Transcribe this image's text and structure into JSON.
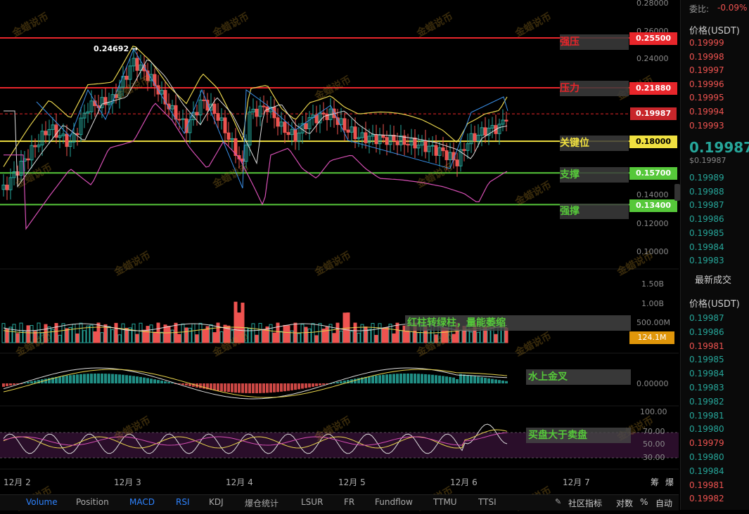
{
  "price_axis": {
    "ticks": [
      "0.28000",
      "0.26000",
      "0.24000",
      "0.20000",
      "0.14000",
      "0.12000",
      "0.10000"
    ],
    "volume_ticks": [
      "1.50B",
      "1.00B",
      "500.00M"
    ],
    "volume_current": "124.1M",
    "macd_tick": "0.00000",
    "rsi_ticks": [
      "100.00",
      "70.00",
      "50.00",
      "30.00"
    ]
  },
  "levels": {
    "strong_resistance": {
      "label": "强压",
      "price": "0.25500",
      "color": "#e8262b"
    },
    "resistance": {
      "label": "压力",
      "price": "0.21880",
      "color": "#e8262b"
    },
    "current": {
      "price": "0.19987",
      "color": "#e8262b"
    },
    "key": {
      "label": "关键位",
      "price": "0.18000",
      "color": "#f0e040"
    },
    "support": {
      "label": "支撑",
      "price": "0.15700",
      "color": "#56c83a"
    },
    "strong_support": {
      "label": "强撑",
      "price": "0.13400",
      "color": "#56c83a"
    }
  },
  "peak_label": "0.24692 →",
  "annotations": {
    "volume_note": "红柱转绿柱，量能萎缩",
    "macd_note": "水上金叉",
    "rsi_note": "买盘大于卖盘"
  },
  "dates": [
    "12月 2",
    "12月 3",
    "12月 4",
    "12月 5",
    "12月 6",
    "12月 7"
  ],
  "axis_corner": [
    "筹",
    "爆"
  ],
  "tabs": [
    "Volume",
    "Position",
    "MACD",
    "RSI",
    "KDJ",
    "爆仓统计",
    "LSUR",
    "FR",
    "Fundflow",
    "TTMU",
    "TTSI"
  ],
  "tabs_right": [
    "社区指标",
    "对数",
    "%",
    "自动"
  ],
  "watermark": "金蜡说币",
  "orderbook": {
    "ratio_label": "委比:",
    "ratio_value": "-0.09%",
    "price_header": "价格(USDT)",
    "asks": [
      "0.19999",
      "0.19998",
      "0.19997",
      "0.19996",
      "0.19995",
      "0.19994",
      "0.19993"
    ],
    "last_price": "0.19987",
    "last_price_usd": "$0.19987",
    "bids": [
      "0.19989",
      "0.19988",
      "0.19987",
      "0.19986",
      "0.19985",
      "0.19984",
      "0.19983"
    ],
    "trades_header": "最新成交",
    "trades_price_header": "价格(USDT)",
    "trades": [
      {
        "p": "0.19987",
        "c": "green"
      },
      {
        "p": "0.19986",
        "c": "green"
      },
      {
        "p": "0.19981",
        "c": "red"
      },
      {
        "p": "0.19985",
        "c": "green"
      },
      {
        "p": "0.19984",
        "c": "green"
      },
      {
        "p": "0.19983",
        "c": "green"
      },
      {
        "p": "0.19982",
        "c": "green"
      },
      {
        "p": "0.19981",
        "c": "green"
      },
      {
        "p": "0.19980",
        "c": "green"
      },
      {
        "p": "0.19979",
        "c": "red"
      },
      {
        "p": "0.19980",
        "c": "green"
      },
      {
        "p": "0.19984",
        "c": "green"
      },
      {
        "p": "0.19981",
        "c": "red"
      },
      {
        "p": "0.19982",
        "c": "red"
      }
    ]
  },
  "colors": {
    "up": "#26a69a",
    "down": "#ef5350",
    "accent": "#2e83ff"
  }
}
